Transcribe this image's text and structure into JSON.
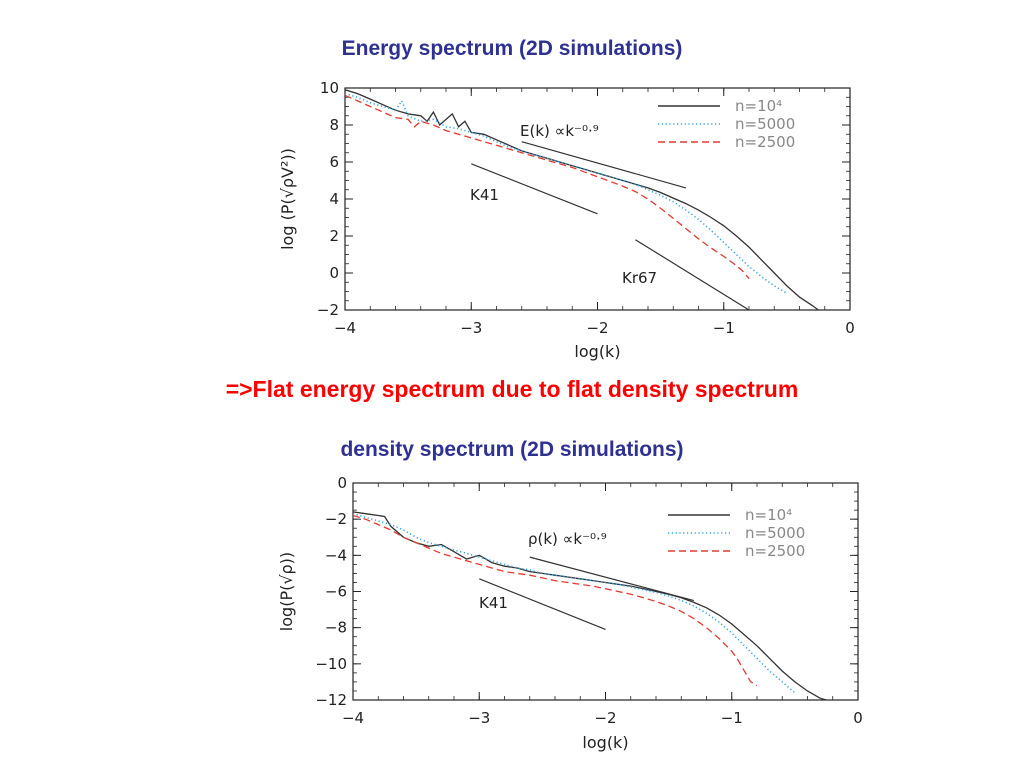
{
  "slide": {
    "title_top": "Energy spectrum (2D simulations)",
    "conclusion": "=>Flat energy spectrum due to flat density spectrum",
    "title_bottom": "density spectrum (2D simulations)"
  },
  "chart_data": [
    {
      "type": "line",
      "title": "Energy spectrum (2D simulations)",
      "xlabel": "log(k)",
      "ylabel": "log  (P(√ρV²))",
      "xlim": [
        -4,
        0
      ],
      "ylim": [
        -2,
        10
      ],
      "xticks": [
        -4,
        -3,
        -2,
        -1,
        0
      ],
      "yticks": [
        -2,
        0,
        2,
        4,
        6,
        8,
        10
      ],
      "legend_position": "top-right",
      "series": [
        {
          "name": "n=10⁴",
          "style": "solid",
          "color": "#333333",
          "x": [
            -4.0,
            -3.9,
            -3.8,
            -3.7,
            -3.6,
            -3.5,
            -3.4,
            -3.35,
            -3.3,
            -3.25,
            -3.2,
            -3.15,
            -3.1,
            -3.05,
            -3.0,
            -2.9,
            -2.8,
            -2.7,
            -2.6,
            -2.5,
            -2.4,
            -2.3,
            -2.2,
            -2.1,
            -2.0,
            -1.9,
            -1.8,
            -1.7,
            -1.6,
            -1.5,
            -1.4,
            -1.3,
            -1.2,
            -1.1,
            -1.0,
            -0.9,
            -0.8,
            -0.7,
            -0.6,
            -0.5,
            -0.4,
            -0.3,
            -0.25,
            -0.2
          ],
          "y": [
            9.9,
            9.7,
            9.4,
            9.1,
            8.8,
            8.6,
            8.5,
            8.2,
            8.7,
            8.0,
            8.3,
            8.6,
            7.9,
            8.2,
            7.6,
            7.5,
            7.2,
            6.9,
            6.6,
            6.4,
            6.2,
            6.0,
            5.8,
            5.6,
            5.4,
            5.2,
            5.0,
            4.8,
            4.6,
            4.35,
            4.05,
            3.75,
            3.4,
            3.0,
            2.55,
            2.0,
            1.4,
            0.7,
            0.0,
            -0.7,
            -1.3,
            -1.75,
            -2.0,
            -2.1
          ]
        },
        {
          "name": "n=5000",
          "style": "dotted",
          "color": "#33a6e0",
          "x": [
            -4.0,
            -3.9,
            -3.8,
            -3.7,
            -3.6,
            -3.55,
            -3.5,
            -3.4,
            -3.3,
            -3.2,
            -3.1,
            -3.0,
            -2.9,
            -2.8,
            -2.7,
            -2.6,
            -2.5,
            -2.4,
            -2.3,
            -2.2,
            -2.1,
            -2.0,
            -1.9,
            -1.8,
            -1.7,
            -1.6,
            -1.5,
            -1.4,
            -1.3,
            -1.2,
            -1.1,
            -1.0,
            -0.9,
            -0.8,
            -0.7,
            -0.6,
            -0.5
          ],
          "y": [
            9.7,
            9.5,
            9.2,
            9.0,
            8.8,
            9.3,
            8.5,
            8.2,
            8.3,
            7.9,
            7.8,
            7.6,
            7.4,
            7.1,
            6.8,
            6.6,
            6.4,
            6.2,
            6.0,
            5.8,
            5.6,
            5.4,
            5.2,
            5.0,
            4.8,
            4.5,
            4.2,
            3.85,
            3.4,
            2.9,
            2.3,
            1.65,
            1.0,
            0.35,
            -0.2,
            -0.7,
            -1.1
          ]
        },
        {
          "name": "n=2500",
          "style": "dashed",
          "color": "#e03c31",
          "x": [
            -4.0,
            -3.9,
            -3.8,
            -3.7,
            -3.6,
            -3.5,
            -3.45,
            -3.4,
            -3.3,
            -3.2,
            -3.1,
            -3.0,
            -2.9,
            -2.8,
            -2.7,
            -2.6,
            -2.5,
            -2.4,
            -2.3,
            -2.2,
            -2.1,
            -2.0,
            -1.9,
            -1.8,
            -1.7,
            -1.6,
            -1.5,
            -1.4,
            -1.3,
            -1.2,
            -1.1,
            -1.0,
            -0.9,
            -0.85,
            -0.8
          ],
          "y": [
            9.6,
            9.3,
            9.0,
            8.7,
            8.4,
            8.3,
            7.9,
            8.2,
            8.0,
            7.7,
            7.5,
            7.3,
            7.1,
            6.9,
            6.7,
            6.5,
            6.3,
            6.1,
            5.9,
            5.7,
            5.45,
            5.2,
            4.95,
            4.7,
            4.4,
            4.0,
            3.5,
            2.95,
            2.4,
            1.85,
            1.35,
            0.9,
            0.4,
            0.1,
            -0.3
          ]
        }
      ],
      "reference_lines": [
        {
          "label": "E(k)  ∝k⁻⁰·⁹",
          "x": [
            -2.6,
            -1.3
          ],
          "y": [
            7.1,
            4.6
          ]
        },
        {
          "label": "K41",
          "x": [
            -3.0,
            -2.0
          ],
          "y": [
            5.9,
            3.2
          ]
        },
        {
          "label": "Kr67",
          "x": [
            -1.7,
            -0.8
          ],
          "y": [
            1.8,
            -2.0
          ]
        }
      ]
    },
    {
      "type": "line",
      "title": "density spectrum (2D simulations)",
      "xlabel": "log(k)",
      "ylabel": "log(P(√ρ))",
      "xlim": [
        -4,
        0
      ],
      "ylim": [
        -12,
        0
      ],
      "xticks": [
        -4,
        -3,
        -2,
        -1,
        0
      ],
      "yticks": [
        0,
        -2,
        -4,
        -6,
        -8,
        -10,
        -12
      ],
      "legend_position": "top-right",
      "series": [
        {
          "name": "n=10⁴",
          "style": "solid",
          "color": "#333333",
          "x": [
            -4.0,
            -3.9,
            -3.8,
            -3.75,
            -3.7,
            -3.6,
            -3.5,
            -3.4,
            -3.3,
            -3.2,
            -3.1,
            -3.0,
            -2.9,
            -2.8,
            -2.7,
            -2.6,
            -2.5,
            -2.4,
            -2.3,
            -2.2,
            -2.1,
            -2.0,
            -1.9,
            -1.8,
            -1.7,
            -1.6,
            -1.5,
            -1.4,
            -1.3,
            -1.2,
            -1.1,
            -1.0,
            -0.9,
            -0.8,
            -0.7,
            -0.6,
            -0.5,
            -0.4,
            -0.3,
            -0.25,
            -0.2
          ],
          "y": [
            -1.6,
            -1.7,
            -1.8,
            -1.85,
            -2.4,
            -3.0,
            -3.3,
            -3.5,
            -3.4,
            -3.8,
            -4.2,
            -4.0,
            -4.4,
            -4.6,
            -4.7,
            -4.9,
            -5.0,
            -5.1,
            -5.2,
            -5.3,
            -5.4,
            -5.5,
            -5.6,
            -5.7,
            -5.85,
            -6.0,
            -6.15,
            -6.35,
            -6.6,
            -6.9,
            -7.3,
            -7.8,
            -8.4,
            -9.0,
            -9.7,
            -10.4,
            -11.0,
            -11.5,
            -11.9,
            -12.0,
            -12.1
          ]
        },
        {
          "name": "n=5000",
          "style": "dotted",
          "color": "#33a6e0",
          "x": [
            -4.0,
            -3.9,
            -3.8,
            -3.7,
            -3.6,
            -3.5,
            -3.4,
            -3.3,
            -3.2,
            -3.1,
            -3.0,
            -2.9,
            -2.8,
            -2.7,
            -2.6,
            -2.5,
            -2.4,
            -2.3,
            -2.2,
            -2.1,
            -2.0,
            -1.9,
            -1.8,
            -1.7,
            -1.6,
            -1.5,
            -1.4,
            -1.3,
            -1.2,
            -1.1,
            -1.0,
            -0.9,
            -0.8,
            -0.7,
            -0.6,
            -0.5
          ],
          "y": [
            -1.7,
            -1.9,
            -2.1,
            -2.3,
            -2.6,
            -3.0,
            -3.3,
            -3.5,
            -3.7,
            -3.9,
            -4.1,
            -4.3,
            -4.5,
            -4.7,
            -4.8,
            -5.0,
            -5.1,
            -5.2,
            -5.3,
            -5.4,
            -5.5,
            -5.6,
            -5.75,
            -5.9,
            -6.05,
            -6.25,
            -6.5,
            -6.8,
            -7.2,
            -7.7,
            -8.3,
            -9.0,
            -9.7,
            -10.4,
            -11.0,
            -11.6
          ]
        },
        {
          "name": "n=2500",
          "style": "dashed",
          "color": "#e03c31",
          "x": [
            -4.0,
            -3.9,
            -3.8,
            -3.7,
            -3.6,
            -3.5,
            -3.4,
            -3.3,
            -3.2,
            -3.1,
            -3.0,
            -2.9,
            -2.8,
            -2.7,
            -2.6,
            -2.5,
            -2.4,
            -2.3,
            -2.2,
            -2.1,
            -2.0,
            -1.9,
            -1.8,
            -1.7,
            -1.6,
            -1.5,
            -1.4,
            -1.3,
            -1.2,
            -1.1,
            -1.0,
            -0.95,
            -0.9,
            -0.85,
            -0.8
          ],
          "y": [
            -1.8,
            -2.0,
            -2.3,
            -2.6,
            -3.0,
            -3.3,
            -3.6,
            -3.9,
            -4.1,
            -4.3,
            -4.5,
            -4.7,
            -4.9,
            -5.0,
            -5.1,
            -5.25,
            -5.4,
            -5.5,
            -5.6,
            -5.7,
            -5.85,
            -6.0,
            -6.15,
            -6.35,
            -6.55,
            -6.8,
            -7.1,
            -7.5,
            -8.0,
            -8.6,
            -9.3,
            -9.8,
            -10.4,
            -11.0,
            -11.2
          ]
        }
      ],
      "reference_lines": [
        {
          "label": "ρ(k)  ∝k⁻⁰·⁹",
          "x": [
            -2.6,
            -1.3
          ],
          "y": [
            -4.1,
            -6.5
          ]
        },
        {
          "label": "K41",
          "x": [
            -3.0,
            -2.0
          ],
          "y": [
            -5.3,
            -8.1
          ]
        }
      ]
    }
  ]
}
